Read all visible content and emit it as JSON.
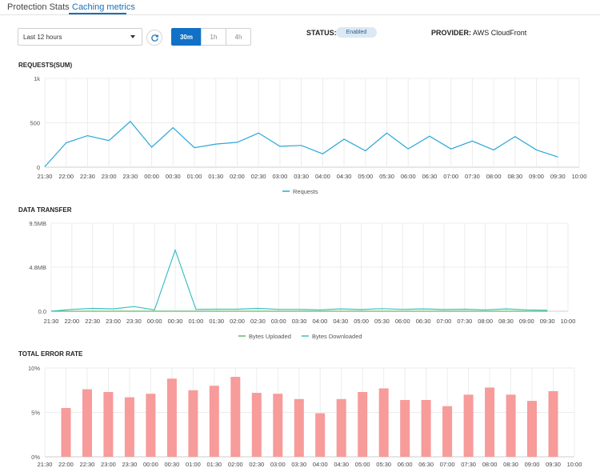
{
  "tabs": [
    {
      "label": "Protection Stats",
      "active": false
    },
    {
      "label": "Caching metrics",
      "active": true
    }
  ],
  "controls": {
    "time_range": "Last 12 hours",
    "intervals": [
      {
        "label": "30m",
        "active": true
      },
      {
        "label": "1h",
        "active": false
      },
      {
        "label": "4h",
        "active": false
      }
    ]
  },
  "status": {
    "label": "STATUS:",
    "value": "Enabled"
  },
  "provider": {
    "label": "PROVIDER:",
    "value": "AWS CloudFront"
  },
  "colors": {
    "accent": "#1171c6",
    "requests": "#2aa7d8",
    "bytes_uploaded": "#64b86a",
    "bytes_downloaded": "#3cc1c1",
    "error_bar": "#f79b9b"
  },
  "icons": {
    "refresh": "refresh-icon",
    "dropdown": "chevron-down-icon"
  },
  "chart_data": [
    {
      "type": "line",
      "title": "REQUESTS(SUM)",
      "x": [
        "21:30",
        "22:00",
        "22:30",
        "23:00",
        "23:30",
        "00:00",
        "00:30",
        "01:00",
        "01:30",
        "02:00",
        "02:30",
        "03:00",
        "03:30",
        "04:00",
        "04:30",
        "05:00",
        "05:30",
        "06:00",
        "06:30",
        "07:00",
        "07:30",
        "08:00",
        "08:30",
        "09:00",
        "09:30",
        "10:00"
      ],
      "x_ticks": [
        "21:30",
        "22:00",
        "22:30",
        "23:00",
        "23:30",
        "00:00",
        "00:30",
        "01:00",
        "01:30",
        "02:00",
        "02:30",
        "03:00",
        "03:30",
        "04:00",
        "04:30",
        "05:00",
        "05:30",
        "06:00",
        "06:30",
        "07:00",
        "07:30",
        "08:00",
        "08:30",
        "09:00",
        "09:30",
        "10:00"
      ],
      "y_ticks": [
        "0",
        "500",
        "1k"
      ],
      "ylim": [
        0,
        1000
      ],
      "series": [
        {
          "name": "Requests",
          "values": [
            5,
            275,
            355,
            300,
            515,
            225,
            445,
            220,
            260,
            280,
            385,
            235,
            245,
            150,
            315,
            185,
            385,
            205,
            350,
            205,
            295,
            195,
            345,
            195,
            115,
            null
          ]
        }
      ],
      "grid": true,
      "legend": "bottom"
    },
    {
      "type": "line",
      "title": "DATA TRANSFER",
      "x": [
        "21:30",
        "22:00",
        "22:30",
        "23:00",
        "23:30",
        "00:00",
        "00:30",
        "01:00",
        "01:30",
        "02:00",
        "02:30",
        "03:00",
        "03:30",
        "04:00",
        "04:30",
        "05:00",
        "05:30",
        "06:00",
        "06:30",
        "07:00",
        "07:30",
        "08:00",
        "08:30",
        "09:00",
        "09:30",
        "10:00"
      ],
      "x_ticks": [
        "21:30",
        "22:00",
        "22:30",
        "23:00",
        "23:30",
        "00:00",
        "00:30",
        "01:00",
        "01:30",
        "02:00",
        "02:30",
        "03:00",
        "03:30",
        "04:00",
        "04:30",
        "05:00",
        "05:30",
        "06:00",
        "06:30",
        "07:00",
        "07:30",
        "08:00",
        "08:30",
        "09:00",
        "09:30",
        "10:00"
      ],
      "y_ticks": [
        "0.0",
        "4.8MB",
        "9.5MB"
      ],
      "y_unit": "MB",
      "ylim": [
        0,
        9.5
      ],
      "series": [
        {
          "name": "Bytes Uploaded",
          "values": [
            0,
            0,
            0,
            0,
            0,
            0,
            0,
            0,
            0,
            0,
            0,
            0,
            0,
            0,
            0,
            0,
            0,
            0,
            0,
            0,
            0,
            0,
            0,
            0,
            0,
            null
          ]
        },
        {
          "name": "Bytes Downloaded",
          "values": [
            0,
            0.2,
            0.3,
            0.25,
            0.5,
            0.15,
            6.6,
            0.2,
            0.22,
            0.22,
            0.3,
            0.2,
            0.2,
            0.15,
            0.25,
            0.18,
            0.28,
            0.2,
            0.25,
            0.18,
            0.22,
            0.15,
            0.25,
            0.15,
            0.1,
            null
          ]
        }
      ],
      "grid": true,
      "legend": "bottom"
    },
    {
      "type": "bar",
      "title": "TOTAL ERROR RATE",
      "categories": [
        "22:00",
        "22:30",
        "23:00",
        "23:30",
        "00:00",
        "00:30",
        "01:00",
        "01:30",
        "02:00",
        "02:30",
        "03:00",
        "03:30",
        "04:00",
        "04:30",
        "05:00",
        "05:30",
        "06:00",
        "06:30",
        "07:00",
        "07:30",
        "08:00",
        "08:30",
        "09:00",
        "09:30"
      ],
      "x_ticks": [
        "21:30",
        "22:00",
        "22:30",
        "23:00",
        "23:30",
        "00:00",
        "00:30",
        "01:00",
        "01:30",
        "02:00",
        "02:30",
        "03:00",
        "03:30",
        "04:00",
        "04:30",
        "05:00",
        "05:30",
        "06:00",
        "06:30",
        "07:00",
        "07:30",
        "08:00",
        "08:30",
        "09:00",
        "09:30",
        "10:00"
      ],
      "y_ticks": [
        "0%",
        "5%",
        "10%"
      ],
      "ylim": [
        0,
        10
      ],
      "values": [
        5.5,
        7.6,
        7.3,
        6.7,
        7.1,
        8.8,
        7.5,
        8.0,
        9.0,
        7.2,
        7.1,
        6.5,
        4.9,
        6.5,
        7.3,
        7.7,
        6.4,
        6.4,
        5.7,
        7.0,
        7.8,
        7.0,
        6.3,
        7.4
      ],
      "grid": true
    }
  ]
}
